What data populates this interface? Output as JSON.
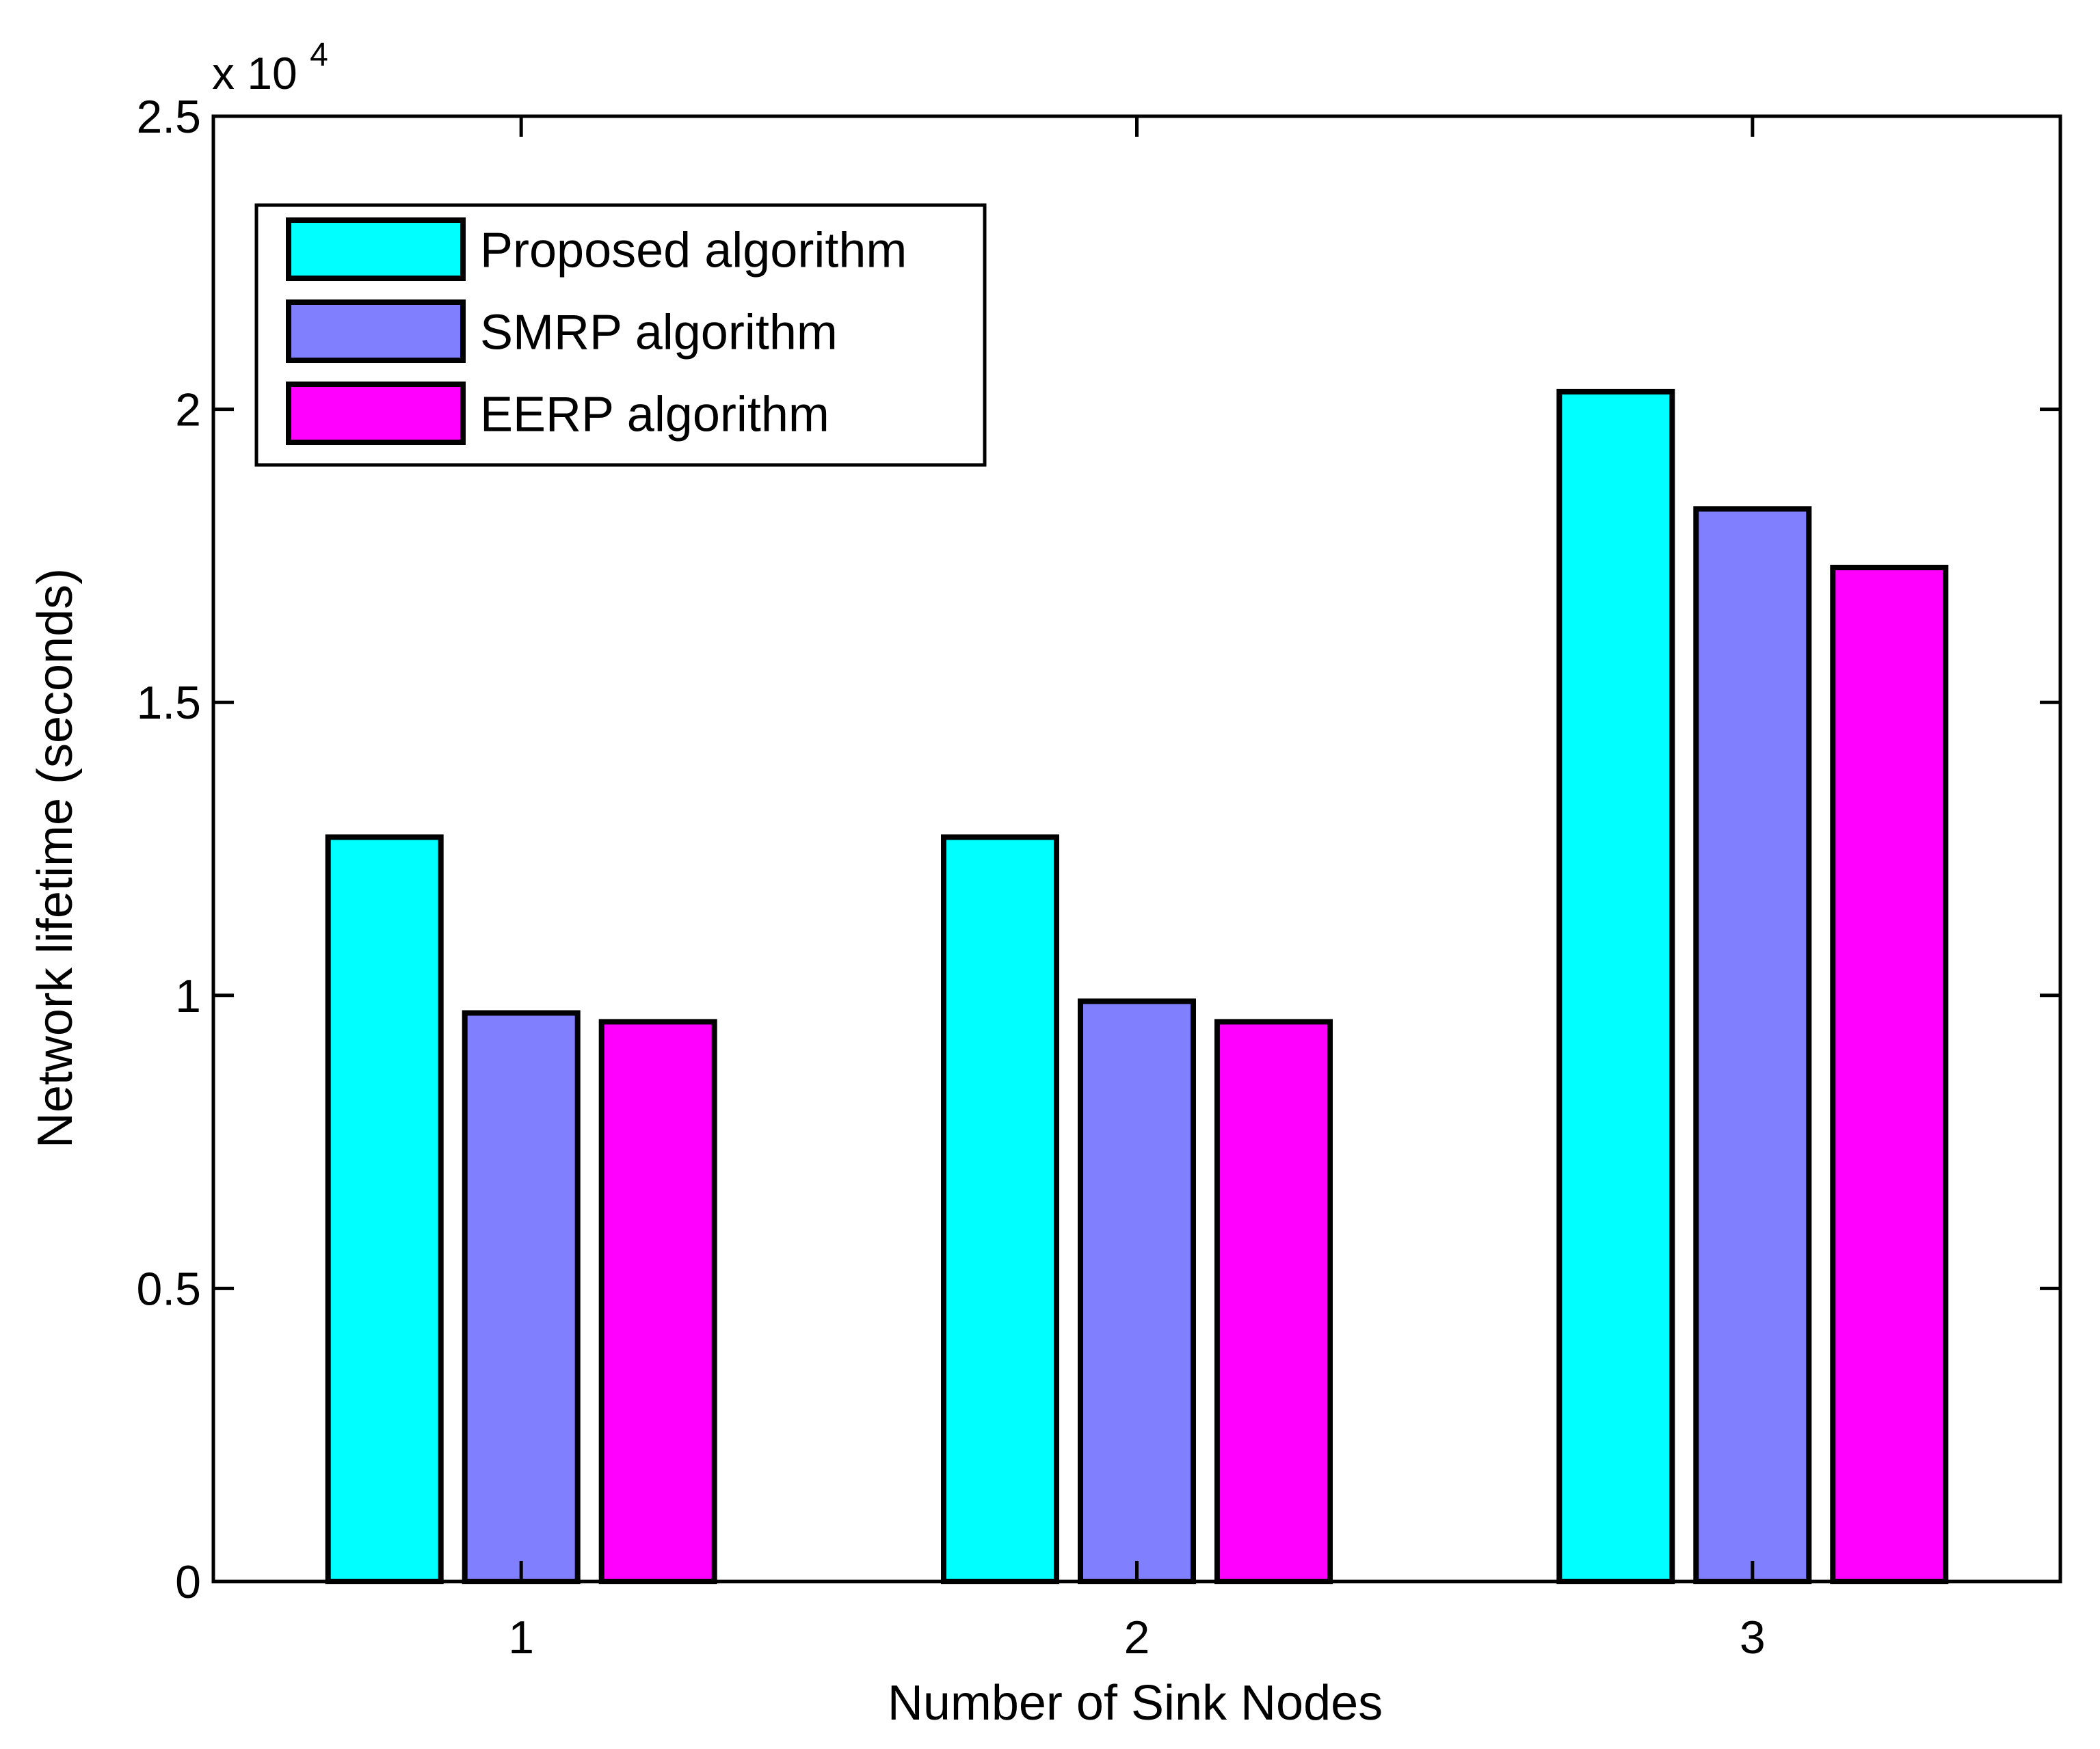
{
  "chart_data": {
    "type": "bar",
    "title": "",
    "xlabel": "Number of Sink Nodes",
    "ylabel": "Network lifetime (seconds)",
    "y_multiplier_base": "x 10",
    "y_multiplier_exponent": "4",
    "categories": [
      "1",
      "2",
      "3"
    ],
    "ylim": [
      0,
      2.5
    ],
    "yticks": [
      0,
      0.5,
      1,
      1.5,
      2,
      2.5
    ],
    "ytick_labels": [
      "0",
      "0.5",
      "1",
      "1.5",
      "2",
      "2.5"
    ],
    "grid": false,
    "legend_position": "top-left",
    "series": [
      {
        "name": "Proposed algorithm",
        "color": "#00FFFF",
        "values": [
          1.27,
          1.27,
          2.03
        ]
      },
      {
        "name": "SMRP algorithm",
        "color": "#8080FF",
        "values": [
          0.97,
          0.99,
          1.83
        ]
      },
      {
        "name": "EERP algorithm",
        "color": "#FF00FF",
        "values": [
          0.955,
          0.955,
          1.73
        ]
      }
    ]
  }
}
